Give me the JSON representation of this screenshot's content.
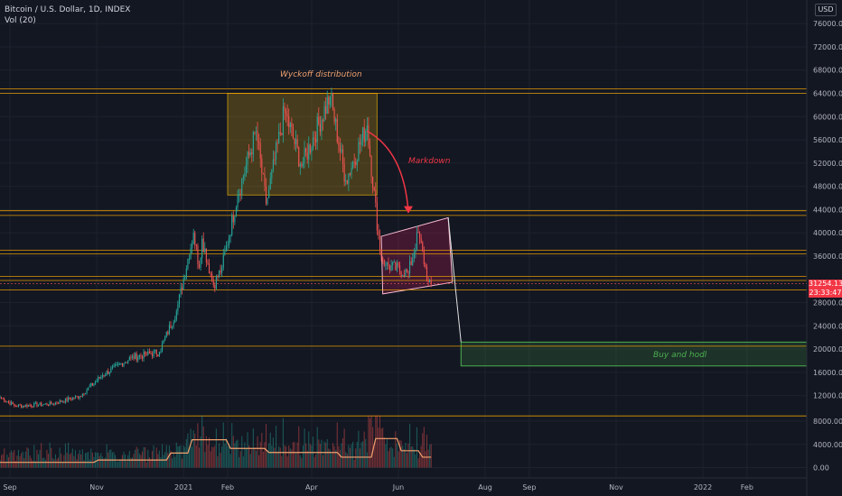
{
  "header": {
    "symbol_line": "Bitcoin / U.S. Dollar, 1D, INDEX",
    "volume_line": "Vol (20)",
    "currency": "USD"
  },
  "last_price": {
    "value": "31254.13",
    "countdown": "23:33:47",
    "color": "#f23645"
  },
  "annotations": {
    "wyckoff": "Wyckoff distribution",
    "markdown": "Markdown",
    "buy_hodl": "Buy and hodl"
  },
  "colors": {
    "background": "#131722",
    "up": "#26a69a",
    "down": "#ef5350",
    "horizontal_level": "#f7a600",
    "grid": "#1e222d",
    "volume_ma": "#f0a16e"
  },
  "chart_data": {
    "type": "candlestick",
    "y_axis": {
      "scale": "linear",
      "ticks": [
        76000,
        72000,
        68000,
        64000,
        60000,
        56000,
        52000,
        48000,
        44000,
        40000,
        36000,
        28000,
        24000,
        20000,
        16000,
        12000
      ],
      "tick_labels": [
        "76000.00",
        "72000.00",
        "68000.00",
        "64000.00",
        "60000.00",
        "56000.00",
        "52000.00",
        "48000.00",
        "44000.00",
        "40000.00",
        "36000.00",
        "28000.00",
        "24000.00",
        "20000.00",
        "16000.00",
        "12000.00"
      ]
    },
    "volume_axis": {
      "ticks": [
        8000,
        4000,
        0
      ],
      "tick_labels": [
        "8000.00",
        "4000.00",
        "0.00"
      ]
    },
    "x_axis": {
      "tick_labels": [
        "Sep",
        "Nov",
        "2021",
        "Feb",
        "Apr",
        "Jun",
        "Aug",
        "Sep",
        "Nov",
        "2022",
        "Feb"
      ],
      "tick_dates": [
        "2020-09-01",
        "2020-11-01",
        "2021-01-01",
        "2021-02-01",
        "2021-04-01",
        "2021-06-01",
        "2021-08-01",
        "2021-09-01",
        "2021-11-01",
        "2022-01-01",
        "2022-02-01"
      ],
      "range": [
        "2020-08-25",
        "2022-03-15"
      ]
    },
    "horizontal_levels": [
      64800,
      64000,
      43800,
      43000,
      37000,
      36400,
      32500,
      31800,
      30200,
      20500,
      8500
    ],
    "series": {
      "key_points": [
        {
          "date": "2020-08-25",
          "price": 11700
        },
        {
          "date": "2020-09-05",
          "price": 10200
        },
        {
          "date": "2020-10-01",
          "price": 10600
        },
        {
          "date": "2020-10-20",
          "price": 11900
        },
        {
          "date": "2020-11-05",
          "price": 15500
        },
        {
          "date": "2020-11-25",
          "price": 18500
        },
        {
          "date": "2020-12-05",
          "price": 19000
        },
        {
          "date": "2020-12-15",
          "price": 19500
        },
        {
          "date": "2020-12-27",
          "price": 26500
        },
        {
          "date": "2021-01-08",
          "price": 40000
        },
        {
          "date": "2021-01-12",
          "price": 34000
        },
        {
          "date": "2021-01-14",
          "price": 39000
        },
        {
          "date": "2021-01-22",
          "price": 31000
        },
        {
          "date": "2021-01-28",
          "price": 34000
        },
        {
          "date": "2021-02-08",
          "price": 46500
        },
        {
          "date": "2021-02-21",
          "price": 57500
        },
        {
          "date": "2021-02-28",
          "price": 45000
        },
        {
          "date": "2021-03-13",
          "price": 61000
        },
        {
          "date": "2021-03-25",
          "price": 51500
        },
        {
          "date": "2021-04-14",
          "price": 63500
        },
        {
          "date": "2021-04-25",
          "price": 49000
        },
        {
          "date": "2021-05-10",
          "price": 58500
        },
        {
          "date": "2021-05-19",
          "price": 37000
        },
        {
          "date": "2021-05-23",
          "price": 34500
        },
        {
          "date": "2021-06-08",
          "price": 33000
        },
        {
          "date": "2021-06-15",
          "price": 40000
        },
        {
          "date": "2021-06-22",
          "price": 31500
        },
        {
          "date": "2021-06-24",
          "price": 31254.13
        }
      ]
    }
  }
}
